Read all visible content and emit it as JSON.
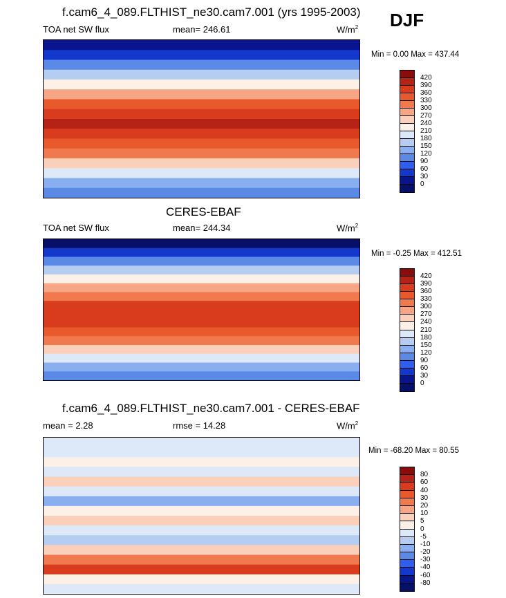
{
  "season": "DJF",
  "chart_data": [
    {
      "type": "heatmap",
      "title": "f.cam6_4_089.FLTHIST_ne30.cam7.001 (yrs 1995-2003)",
      "left_label": "TOA net SW flux",
      "center_label": "mean= 246.61",
      "units_base": "W/m",
      "units_exp": "2",
      "minmax": "Min =   0.00 Max = 437.44",
      "levels": [
        "420",
        "390",
        "360",
        "330",
        "300",
        "270",
        "240",
        "210",
        "180",
        "150",
        "120",
        "90",
        "60",
        "30",
        "0"
      ],
      "colors": [
        "#8a0c0c",
        "#b52317",
        "#d93b1d",
        "#e85a2b",
        "#f07a4e",
        "#f6a684",
        "#fbd0bb",
        "#fdf0e6",
        "#dde8f8",
        "#b4cdf1",
        "#89aff0",
        "#5b8ae6",
        "#305ff0",
        "#1437cc",
        "#08158f",
        "#061067"
      ],
      "band_profile": [
        0.05,
        0.15,
        0.28,
        0.42,
        0.55,
        0.66,
        0.78,
        0.86,
        0.9,
        0.86,
        0.8,
        0.74,
        0.62,
        0.5,
        0.35,
        0.25
      ],
      "xrange": [
        0,
        360
      ],
      "yrange": [
        -90,
        90
      ]
    },
    {
      "type": "heatmap",
      "title": "CERES-EBAF",
      "left_label": "TOA net SW flux",
      "center_label": "mean= 244.34",
      "units_base": "W/m",
      "units_exp": "2",
      "minmax": "Min =  -0.25 Max = 412.51",
      "levels": [
        "420",
        "390",
        "360",
        "330",
        "300",
        "270",
        "240",
        "210",
        "180",
        "150",
        "120",
        "90",
        "60",
        "30",
        "0"
      ],
      "colors": [
        "#8a0c0c",
        "#b52317",
        "#d93b1d",
        "#e85a2b",
        "#f07a4e",
        "#f6a684",
        "#fbd0bb",
        "#fdf0e6",
        "#dde8f8",
        "#b4cdf1",
        "#89aff0",
        "#5b8ae6",
        "#305ff0",
        "#1437cc",
        "#08158f",
        "#061067"
      ],
      "band_profile": [
        0.03,
        0.12,
        0.26,
        0.4,
        0.54,
        0.65,
        0.76,
        0.84,
        0.86,
        0.84,
        0.8,
        0.72,
        0.6,
        0.48,
        0.34,
        0.25
      ],
      "xrange": [
        0,
        360
      ],
      "yrange": [
        -90,
        90
      ]
    },
    {
      "type": "heatmap",
      "title": "f.cam6_4_089.FLTHIST_ne30.cam7.001 - CERES-EBAF",
      "left_label": "mean =   2.28",
      "center_label": "rmse =   14.28",
      "units_base": "W/m",
      "units_exp": "2",
      "minmax": "Min = -68.20 Max =  80.55",
      "levels": [
        "80",
        "60",
        "40",
        "30",
        "20",
        "10",
        "5",
        "0",
        "-5",
        "-10",
        "-20",
        "-30",
        "-40",
        "-60",
        "-80"
      ],
      "colors": [
        "#8a0c0c",
        "#b52317",
        "#d93b1d",
        "#e85a2b",
        "#f07a4e",
        "#f6a684",
        "#fbd0bb",
        "#fdf0e6",
        "#dde8f8",
        "#b4cdf1",
        "#89aff0",
        "#5b8ae6",
        "#305ff0",
        "#1437cc",
        "#08158f",
        "#061067"
      ],
      "band_profile": [
        0.5,
        0.48,
        0.55,
        0.45,
        0.62,
        0.5,
        0.35,
        0.55,
        0.6,
        0.45,
        0.4,
        0.6,
        0.72,
        0.85,
        0.55,
        0.5
      ],
      "xrange": [
        0,
        360
      ],
      "yrange": [
        -90,
        90
      ]
    }
  ]
}
